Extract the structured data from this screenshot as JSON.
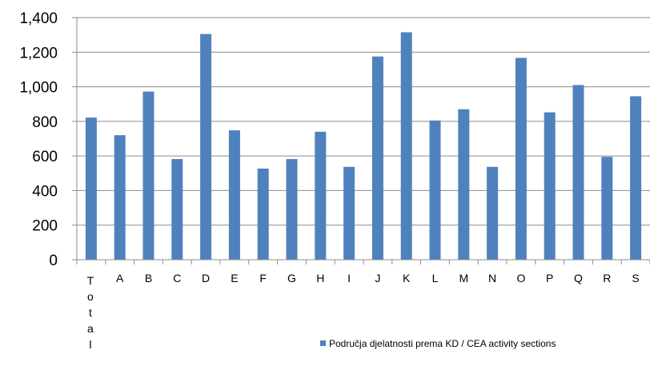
{
  "chart_data": {
    "type": "bar",
    "categories": [
      "Total",
      "A",
      "B",
      "C",
      "D",
      "E",
      "F",
      "G",
      "H",
      "I",
      "J",
      "K",
      "L",
      "M",
      "N",
      "O",
      "P",
      "Q",
      "R",
      "S"
    ],
    "series": [
      {
        "name": "Područja djelatnosti prema KD / CEA activity sections",
        "values": [
          822,
          720,
          972,
          582,
          1305,
          748,
          527,
          582,
          740,
          537,
          1175,
          1315,
          805,
          870,
          537,
          1167,
          852,
          1010,
          595,
          945
        ]
      }
    ],
    "ylim": [
      0,
      1400
    ],
    "yticks": [
      0,
      200,
      400,
      600,
      800,
      1000,
      1200,
      1400
    ],
    "ytick_labels": [
      "0",
      "200",
      "400",
      "600",
      "800",
      "1,000",
      "1,200",
      "1,400"
    ],
    "grid": true,
    "legend_position": "bottom-right",
    "bar_color": "#4f81bd"
  }
}
